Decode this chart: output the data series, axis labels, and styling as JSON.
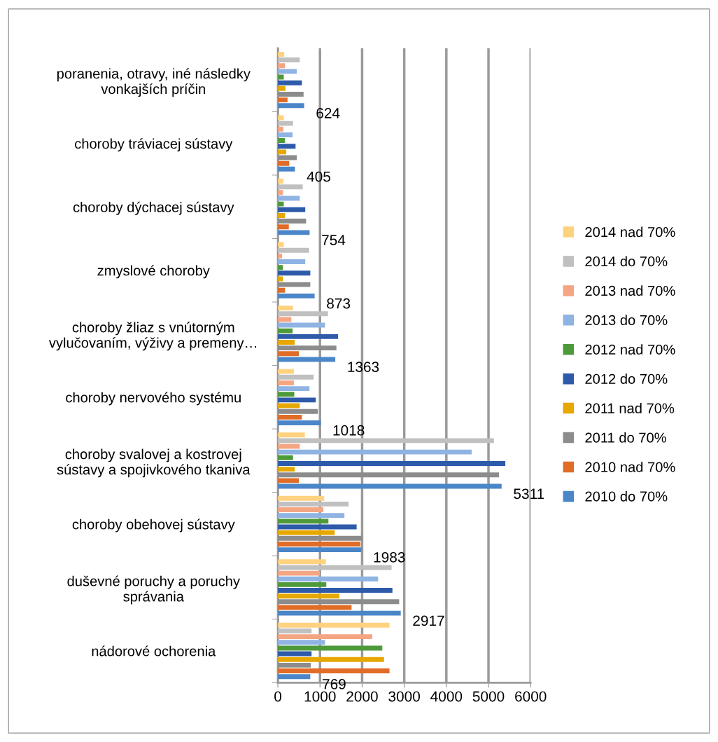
{
  "chart_data": {
    "type": "bar",
    "orientation": "horizontal",
    "categories": [
      "poranenia, otravy, iné následky\nvonkajších príčin",
      "choroby tráviacej sústavy",
      "choroby dýchacej sústavy",
      "zmyslové choroby",
      "choroby žliaz s vnútorným\nvylučovaním, výživy a premeny…",
      "choroby nervového systému",
      "choroby svalovej a kostrovej\nsústavy a spojivkového tkaniva",
      "choroby obehovej sústavy",
      "duševné poruchy a poruchy\nsprávania",
      "nádorové ochorenia"
    ],
    "series": [
      {
        "name": "2010 do 70%",
        "color": "#4a86c8",
        "values": [
          624,
          405,
          754,
          873,
          1363,
          1018,
          5311,
          1983,
          2917,
          769
        ],
        "value_labels": [
          "624",
          "405",
          "754",
          "873",
          "1363",
          "1018",
          "5311",
          "1983",
          "2917",
          "769"
        ]
      },
      {
        "name": "2010 nad 70%",
        "color": "#e06c28",
        "values": [
          230,
          270,
          260,
          170,
          500,
          570,
          500,
          1960,
          1750,
          2650
        ]
      },
      {
        "name": "2011 do 70%",
        "color": "#8c8c8c",
        "values": [
          610,
          450,
          670,
          770,
          1390,
          950,
          5250,
          2000,
          2880,
          780
        ]
      },
      {
        "name": "2011 nad 70%",
        "color": "#e6a800",
        "values": [
          180,
          200,
          170,
          120,
          400,
          520,
          400,
          1350,
          1460,
          2520
        ]
      },
      {
        "name": "2012 do 70%",
        "color": "#2e5aaa",
        "values": [
          570,
          420,
          650,
          770,
          1430,
          900,
          5400,
          1870,
          2720,
          800
        ]
      },
      {
        "name": "2012 nad 70%",
        "color": "#4e9a3a",
        "values": [
          140,
          170,
          140,
          120,
          350,
          390,
          360,
          1200,
          1150,
          2480
        ]
      },
      {
        "name": "2013 do 70%",
        "color": "#8fb4e3",
        "values": [
          450,
          350,
          520,
          650,
          1120,
          750,
          4600,
          1580,
          2380,
          1120
        ]
      },
      {
        "name": "2013 nad 70%",
        "color": "#f4a582",
        "values": [
          170,
          130,
          120,
          100,
          320,
          380,
          520,
          1080,
          1000,
          2240
        ]
      },
      {
        "name": "2014 do 70%",
        "color": "#c0c0c0",
        "values": [
          520,
          360,
          590,
          740,
          1190,
          850,
          5130,
          1680,
          2700,
          800
        ]
      },
      {
        "name": "2014 nad 70%",
        "color": "#ffd27f",
        "values": [
          150,
          140,
          130,
          140,
          360,
          380,
          640,
          1100,
          1140,
          2650
        ]
      }
    ],
    "xlim": [
      0,
      6000
    ],
    "xticks": [
      0,
      1000,
      2000,
      3000,
      4000,
      5000,
      6000
    ],
    "grid": "x",
    "legend": "right"
  }
}
